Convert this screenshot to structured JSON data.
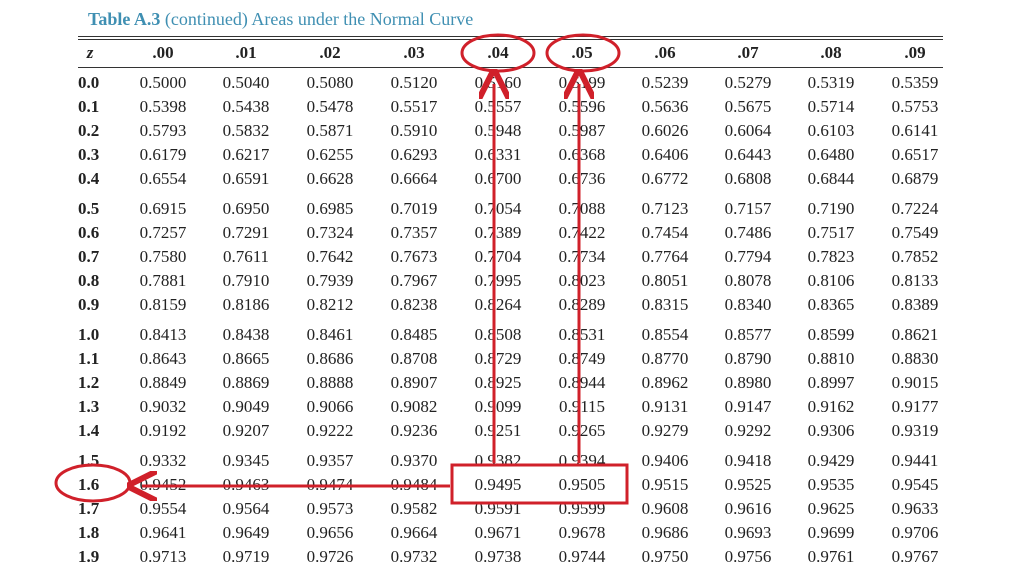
{
  "caption": {
    "label": "Table A.3",
    "rest": " (continued) Areas under the Normal Curve"
  },
  "header": {
    "z": "z",
    "cols": [
      ".00",
      ".01",
      ".02",
      ".03",
      ".04",
      ".05",
      ".06",
      ".07",
      ".08",
      ".09"
    ]
  },
  "rows": [
    {
      "z": "0.0",
      "values": [
        "0.5000",
        "0.5040",
        "0.5080",
        "0.5120",
        "0.5160",
        "0.5199",
        "0.5239",
        "0.5279",
        "0.5319",
        "0.5359"
      ]
    },
    {
      "z": "0.1",
      "values": [
        "0.5398",
        "0.5438",
        "0.5478",
        "0.5517",
        "0.5557",
        "0.5596",
        "0.5636",
        "0.5675",
        "0.5714",
        "0.5753"
      ]
    },
    {
      "z": "0.2",
      "values": [
        "0.5793",
        "0.5832",
        "0.5871",
        "0.5910",
        "0.5948",
        "0.5987",
        "0.6026",
        "0.6064",
        "0.6103",
        "0.6141"
      ]
    },
    {
      "z": "0.3",
      "values": [
        "0.6179",
        "0.6217",
        "0.6255",
        "0.6293",
        "0.6331",
        "0.6368",
        "0.6406",
        "0.6443",
        "0.6480",
        "0.6517"
      ]
    },
    {
      "z": "0.4",
      "values": [
        "0.6554",
        "0.6591",
        "0.6628",
        "0.6664",
        "0.6700",
        "0.6736",
        "0.6772",
        "0.6808",
        "0.6844",
        "0.6879"
      ]
    },
    {
      "z": "0.5",
      "values": [
        "0.6915",
        "0.6950",
        "0.6985",
        "0.7019",
        "0.7054",
        "0.7088",
        "0.7123",
        "0.7157",
        "0.7190",
        "0.7224"
      ]
    },
    {
      "z": "0.6",
      "values": [
        "0.7257",
        "0.7291",
        "0.7324",
        "0.7357",
        "0.7389",
        "0.7422",
        "0.7454",
        "0.7486",
        "0.7517",
        "0.7549"
      ]
    },
    {
      "z": "0.7",
      "values": [
        "0.7580",
        "0.7611",
        "0.7642",
        "0.7673",
        "0.7704",
        "0.7734",
        "0.7764",
        "0.7794",
        "0.7823",
        "0.7852"
      ]
    },
    {
      "z": "0.8",
      "values": [
        "0.7881",
        "0.7910",
        "0.7939",
        "0.7967",
        "0.7995",
        "0.8023",
        "0.8051",
        "0.8078",
        "0.8106",
        "0.8133"
      ]
    },
    {
      "z": "0.9",
      "values": [
        "0.8159",
        "0.8186",
        "0.8212",
        "0.8238",
        "0.8264",
        "0.8289",
        "0.8315",
        "0.8340",
        "0.8365",
        "0.8389"
      ]
    },
    {
      "z": "1.0",
      "values": [
        "0.8413",
        "0.8438",
        "0.8461",
        "0.8485",
        "0.8508",
        "0.8531",
        "0.8554",
        "0.8577",
        "0.8599",
        "0.8621"
      ]
    },
    {
      "z": "1.1",
      "values": [
        "0.8643",
        "0.8665",
        "0.8686",
        "0.8708",
        "0.8729",
        "0.8749",
        "0.8770",
        "0.8790",
        "0.8810",
        "0.8830"
      ]
    },
    {
      "z": "1.2",
      "values": [
        "0.8849",
        "0.8869",
        "0.8888",
        "0.8907",
        "0.8925",
        "0.8944",
        "0.8962",
        "0.8980",
        "0.8997",
        "0.9015"
      ]
    },
    {
      "z": "1.3",
      "values": [
        "0.9032",
        "0.9049",
        "0.9066",
        "0.9082",
        "0.9099",
        "0.9115",
        "0.9131",
        "0.9147",
        "0.9162",
        "0.9177"
      ]
    },
    {
      "z": "1.4",
      "values": [
        "0.9192",
        "0.9207",
        "0.9222",
        "0.9236",
        "0.9251",
        "0.9265",
        "0.9279",
        "0.9292",
        "0.9306",
        "0.9319"
      ]
    },
    {
      "z": "1.5",
      "values": [
        "0.9332",
        "0.9345",
        "0.9357",
        "0.9370",
        "0.9382",
        "0.9394",
        "0.9406",
        "0.9418",
        "0.9429",
        "0.9441"
      ]
    },
    {
      "z": "1.6",
      "values": [
        "0.9452",
        "0.9463",
        "0.9474",
        "0.9484",
        "0.9495",
        "0.9505",
        "0.9515",
        "0.9525",
        "0.9535",
        "0.9545"
      ]
    },
    {
      "z": "1.7",
      "values": [
        "0.9554",
        "0.9564",
        "0.9573",
        "0.9582",
        "0.9591",
        "0.9599",
        "0.9608",
        "0.9616",
        "0.9625",
        "0.9633"
      ]
    },
    {
      "z": "1.8",
      "values": [
        "0.9641",
        "0.9649",
        "0.9656",
        "0.9664",
        "0.9671",
        "0.9678",
        "0.9686",
        "0.9693",
        "0.9699",
        "0.9706"
      ]
    },
    {
      "z": "1.9",
      "values": [
        "0.9713",
        "0.9719",
        "0.9726",
        "0.9732",
        "0.9738",
        "0.9744",
        "0.9750",
        "0.9756",
        "0.9761",
        "0.9767"
      ]
    }
  ],
  "annotation": {
    "color": "#d0202a",
    "circled_columns": [
      ".04",
      ".05"
    ],
    "circled_row": "1.6",
    "boxed_values": [
      "0.9495",
      "0.9505"
    ]
  }
}
